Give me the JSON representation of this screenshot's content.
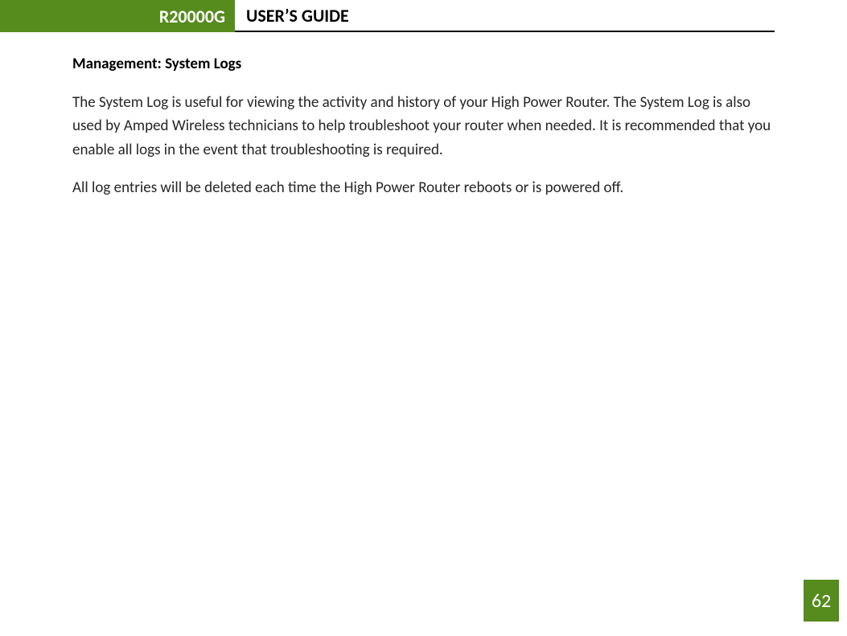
{
  "colors": {
    "brand_green": "#568b1e",
    "text_black": "#000000",
    "body_text": "#262626",
    "page_bg": "#ffffff"
  },
  "typography": {
    "header_fontsize_pt": 16,
    "heading_fontsize_pt": 14,
    "body_fontsize_pt": 14,
    "pagenum_fontsize_pt": 18,
    "font_family": "Calibri"
  },
  "header": {
    "model": "R20000G",
    "title": "USER’S GUIDE"
  },
  "section": {
    "heading": "Management: System Logs",
    "paragraphs": [
      "The System Log is useful for viewing the activity and history of your High Power Router.  The System Log is also used by Amped Wireless technicians to help troubleshoot your router when needed.  It is recommended that you enable all logs in the event that troubleshooting is required.",
      "All log entries will be deleted each time the High Power Router reboots or is powered off."
    ]
  },
  "page_number": "62"
}
